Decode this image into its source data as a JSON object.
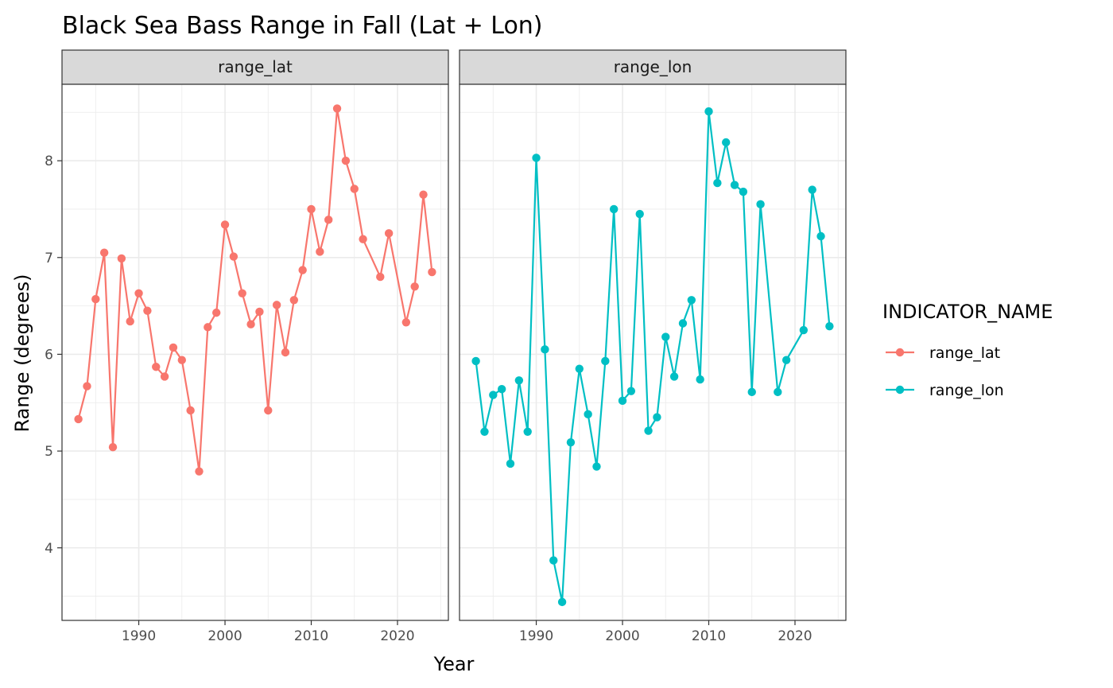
{
  "chart_data": {
    "type": "line",
    "title": "Black Sea Bass Range in Fall (Lat + Lon)",
    "xlabel": "Year",
    "ylabel": "Range (degrees)",
    "xlim": [
      1981.1,
      2025.9
    ],
    "ylim": [
      3.25,
      8.79
    ],
    "x_ticks": [
      1990,
      2000,
      2010,
      2020
    ],
    "y_ticks": [
      4,
      5,
      6,
      7,
      8
    ],
    "grid": true,
    "legend": {
      "title": "INDICATOR_NAME",
      "position": "right"
    },
    "panels": [
      {
        "name": "range_lat",
        "color": "#F8766D",
        "x": [
          1983,
          1984,
          1985,
          1986,
          1987,
          1988,
          1989,
          1990,
          1991,
          1992,
          1993,
          1994,
          1995,
          1996,
          1997,
          1998,
          1999,
          2000,
          2001,
          2002,
          2003,
          2004,
          2005,
          2006,
          2007,
          2008,
          2009,
          2010,
          2011,
          2012,
          2013,
          2014,
          2015,
          2016,
          2018,
          2019,
          2021,
          2022,
          2023,
          2024
        ],
        "values": [
          5.33,
          5.67,
          6.57,
          7.05,
          5.04,
          6.99,
          6.34,
          6.63,
          6.45,
          5.87,
          5.77,
          6.07,
          5.94,
          5.42,
          4.79,
          6.28,
          6.43,
          7.34,
          7.01,
          6.63,
          6.31,
          6.44,
          5.42,
          6.51,
          6.02,
          6.56,
          6.87,
          7.5,
          7.06,
          7.39,
          8.54,
          8.0,
          7.71,
          7.19,
          6.8,
          7.25,
          6.33,
          6.7,
          7.65,
          6.85
        ]
      },
      {
        "name": "range_lon",
        "color": "#00BFC4",
        "x": [
          1983,
          1984,
          1985,
          1986,
          1987,
          1988,
          1989,
          1990,
          1991,
          1992,
          1993,
          1994,
          1995,
          1996,
          1997,
          1998,
          1999,
          2000,
          2001,
          2002,
          2003,
          2004,
          2005,
          2006,
          2007,
          2008,
          2009,
          2010,
          2011,
          2012,
          2013,
          2014,
          2015,
          2016,
          2018,
          2019,
          2021,
          2022,
          2023,
          2024
        ],
        "values": [
          5.93,
          5.2,
          5.58,
          5.64,
          4.87,
          5.73,
          5.2,
          8.03,
          6.05,
          3.87,
          3.44,
          5.09,
          5.85,
          5.38,
          4.84,
          5.93,
          7.5,
          5.52,
          5.62,
          7.45,
          5.21,
          5.35,
          6.18,
          5.77,
          6.32,
          6.56,
          5.74,
          8.51,
          7.77,
          8.19,
          7.75,
          7.68,
          5.61,
          7.55,
          5.61,
          5.94,
          6.25,
          7.7,
          7.22,
          6.29
        ]
      }
    ]
  }
}
